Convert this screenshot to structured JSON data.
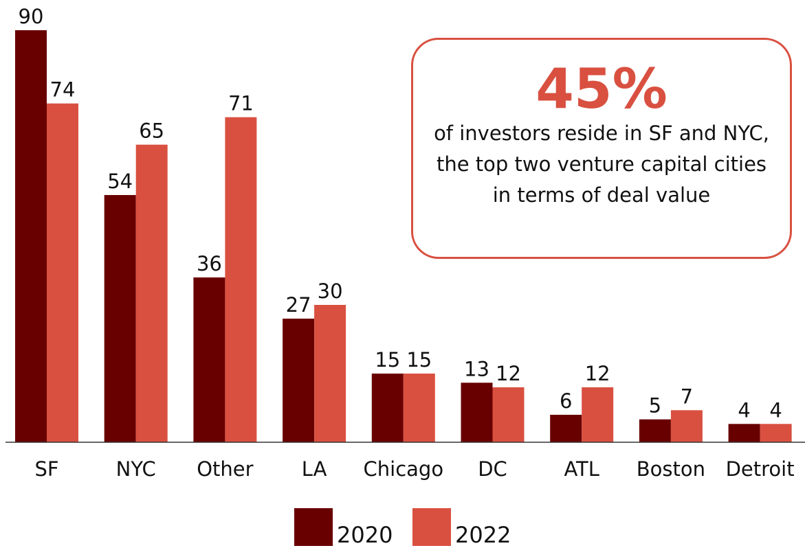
{
  "chart_data": {
    "type": "bar",
    "categories": [
      "SF",
      "NYC",
      "Other",
      "LA",
      "Chicago",
      "DC",
      "ATL",
      "Boston",
      "Detroit"
    ],
    "series": [
      {
        "name": "2020",
        "color": "#690000",
        "values": [
          90,
          54,
          36,
          27,
          15,
          13,
          6,
          5,
          4
        ]
      },
      {
        "name": "2022",
        "color": "#d95040",
        "values": [
          74,
          65,
          71,
          30,
          15,
          12,
          12,
          7,
          4
        ]
      }
    ],
    "ylim": [
      0,
      90
    ],
    "annotation": {
      "headline": "45%",
      "text": "of investors reside in SF and NYC, the top two venture capital cities in terms of deal value"
    },
    "legend": "bottom"
  }
}
